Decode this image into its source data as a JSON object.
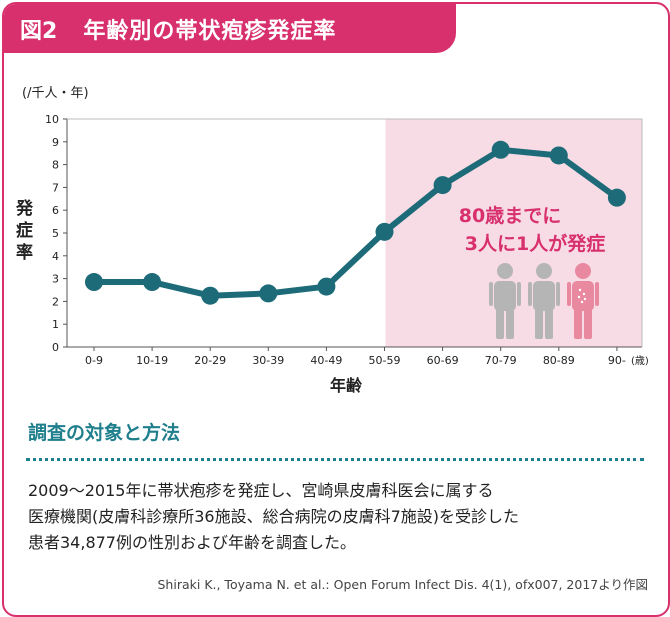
{
  "figure": {
    "number": "図2",
    "title": "年齢別の帯状疱疹発症率"
  },
  "chart_data": {
    "type": "line",
    "unit": "(/千人・年)",
    "ylabel": "発症率",
    "xlabel": "年齢",
    "x_unit": "(歳)",
    "categories": [
      "0-9",
      "10-19",
      "20-29",
      "30-39",
      "40-49",
      "50-59",
      "60-69",
      "70-79",
      "80-89",
      "90-"
    ],
    "values": [
      2.85,
      2.85,
      2.25,
      2.35,
      2.65,
      5.05,
      7.1,
      8.65,
      8.4,
      6.55
    ],
    "ylim": [
      0,
      10
    ],
    "yticks": [
      0,
      1,
      2,
      3,
      4,
      5,
      6,
      7,
      8,
      9,
      10
    ],
    "highlight_from_category": "50-59",
    "annotation_line1": "80歳までに",
    "annotation_line2": "3人に1人が発症",
    "colors": {
      "line": "#1d6b78",
      "highlight": "#f7dbe5",
      "accent": "#d8306d",
      "person_gray": "#b5b5b5",
      "person_pink": "#e8899f"
    }
  },
  "methods": {
    "heading": "調査の対象と方法",
    "line1": "2009〜2015年に帯状疱疹を発症し、宮崎県皮膚科医会に属する",
    "line2": "医療機関(皮膚科診療所36施設、総合病院の皮膚科7施設)を受診した",
    "line3": "患者34,877例の性別および年齢を調査した。"
  },
  "citation": "Shiraki K., Toyama N. et al.: Open Forum Infect Dis. 4(1), ofx007, 2017より作図"
}
